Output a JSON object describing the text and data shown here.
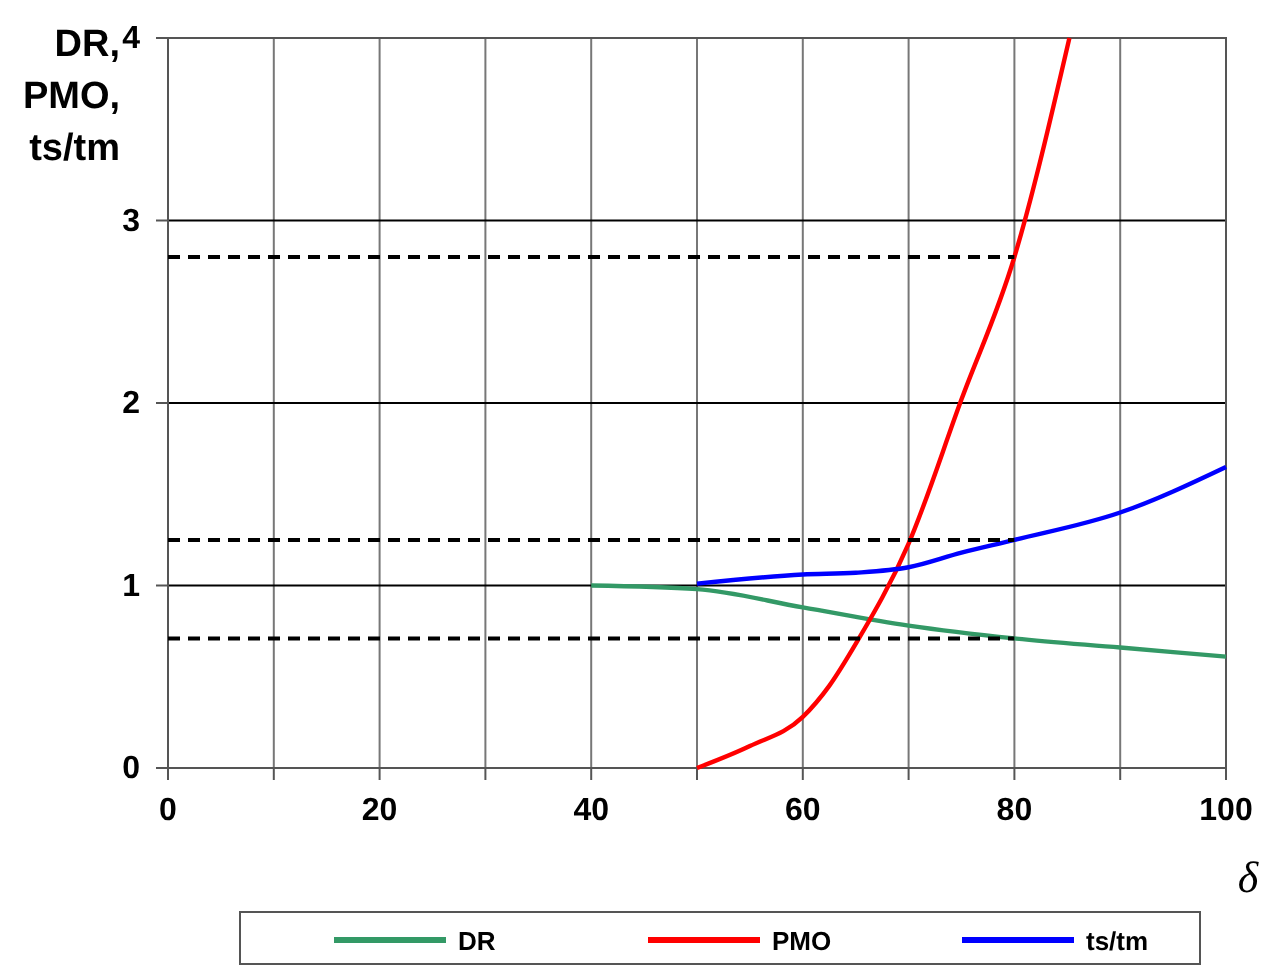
{
  "chart_data": {
    "type": "line",
    "xlabel": "δ",
    "ylabel": "DR, PMO, ts/tm",
    "xlim": [
      0,
      100
    ],
    "ylim": [
      0,
      4
    ],
    "xticks": [
      0,
      {
        "value": 10,
        "label": null
      },
      20,
      {
        "value": 30,
        "label": null
      },
      40,
      {
        "value": 50,
        "label": null
      },
      60,
      {
        "value": 70,
        "label": null
      },
      80,
      {
        "value": 90,
        "label": null
      },
      100
    ],
    "yticks": [
      0,
      1,
      2,
      3,
      4
    ],
    "grid": true,
    "legend": "bottom",
    "marker": "none",
    "line_style": "solid",
    "series": [
      {
        "name": "DR",
        "color": "#339966",
        "x": [
          40,
          50,
          60,
          70,
          80,
          90,
          100
        ],
        "values": [
          1.0,
          0.98,
          0.88,
          0.78,
          0.71,
          0.66,
          0.61
        ]
      },
      {
        "name": "PMO",
        "color": "#ff0000",
        "x": [
          50,
          55,
          60,
          62.5,
          65,
          70,
          75,
          80,
          85.2
        ],
        "values": [
          0,
          0.12,
          0.28,
          0.45,
          0.68,
          1.23,
          2.02,
          2.8,
          4
        ]
      },
      {
        "name": "ts/tm",
        "color": "#0000ff",
        "x": [
          50,
          60,
          65,
          70,
          75,
          80,
          90,
          100
        ],
        "values": [
          1.01,
          1.06,
          1.07,
          1.1,
          1.18,
          1.25,
          1.4,
          1.65
        ]
      },
      {
        "color": "#000000",
        "line_style": "dashed",
        "x": [
          0,
          80
        ],
        "values": [
          2.8,
          2.8
        ]
      },
      {
        "color": "#000000",
        "line_style": "dashed",
        "x": [
          0,
          80
        ],
        "values": [
          1.25,
          1.25
        ]
      },
      {
        "color": "#000000",
        "line_style": "dashed",
        "x": [
          0,
          80
        ],
        "values": [
          0.71,
          0.71
        ]
      }
    ]
  }
}
